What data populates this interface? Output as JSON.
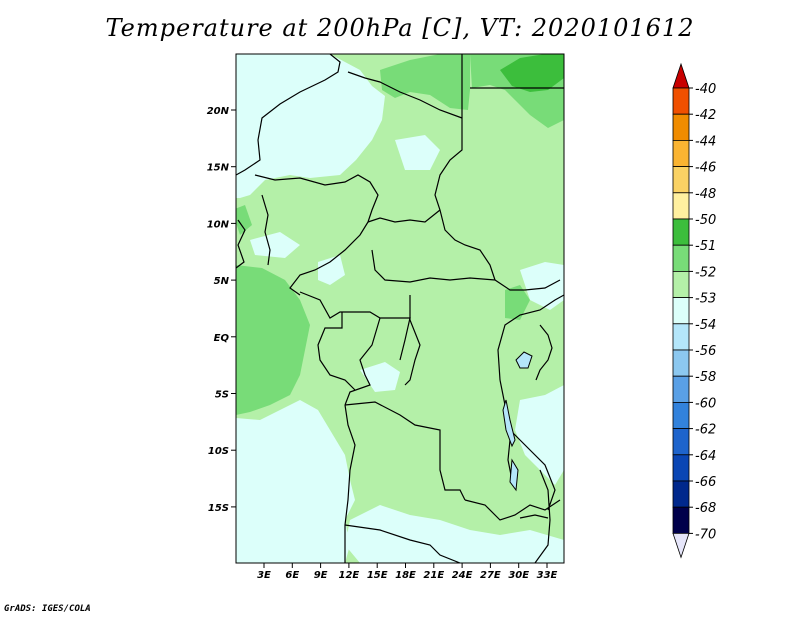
{
  "title": "Temperature at 200hPa [C], VT: 2020101612",
  "credit": "GrADS: IGES/COLA",
  "lat_labels": [
    "20N",
    "15N",
    "10N",
    "5N",
    "EQ",
    "5S",
    "10S",
    "15S"
  ],
  "lon_labels": [
    "3E",
    "6E",
    "9E",
    "12E",
    "15E",
    "18E",
    "21E",
    "24E",
    "27E",
    "30E",
    "33E"
  ],
  "colorbar": {
    "labels": [
      "-40",
      "-42",
      "-44",
      "-46",
      "-48",
      "-50",
      "-51",
      "-52",
      "-53",
      "-54",
      "-56",
      "-58",
      "-60",
      "-62",
      "-64",
      "-66",
      "-68",
      "-70"
    ],
    "colors": [
      "#d21e00",
      "#f05000",
      "#f08c00",
      "#fab432",
      "#fad264",
      "#fff0a0",
      "#3cbe3c",
      "#78dc78",
      "#b4f0a8",
      "#dcfffa",
      "#b4e6fa",
      "#8cc8f0",
      "#5aa0e6",
      "#3282dc",
      "#1e64cc",
      "#0a46b4",
      "#00288c",
      "#00004b"
    ],
    "top_arrow_color": "#c80000",
    "bottom_arrow_color": "#e6e6fa"
  },
  "map_colors": {
    "light_cyan": "#dcfffa",
    "light_green": "#b4f0a8",
    "mid_green": "#78dc78",
    "dark_green": "#3cbe3c",
    "lake": "#b4e6fa"
  }
}
